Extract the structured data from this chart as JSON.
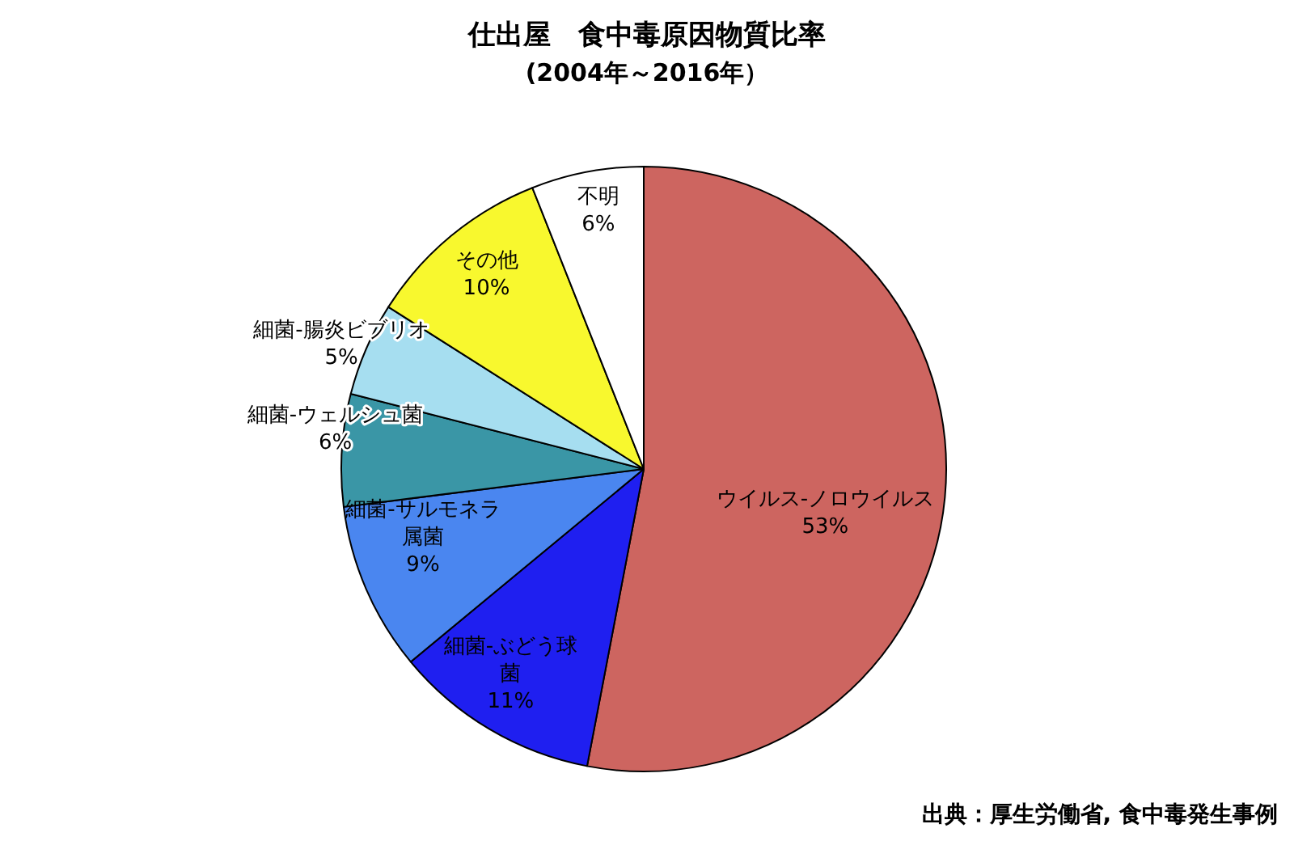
{
  "chart_data": {
    "type": "pie",
    "title": "仕出屋　食中毒原因物質比率",
    "subtitle": "(2004年～2016年）",
    "categories": [
      "ウイルス-ノロウイルス",
      "細菌-ぶどう球菌",
      "細菌-サルモネラ属菌",
      "細菌-ウェルシュ菌",
      "細菌-腸炎ビブリオ",
      "その他",
      "不明"
    ],
    "values": [
      53,
      11,
      9,
      6,
      5,
      10,
      6
    ],
    "value_labels": [
      "53%",
      "11%",
      "9%",
      "6%",
      "5%",
      "10%",
      "6%"
    ],
    "colors": [
      "#cd6560",
      "#1f1ff0",
      "#4a86f0",
      "#3a96a6",
      "#a6def0",
      "#f8f82e",
      "#ffffff"
    ],
    "annotations": [
      "出典：厚生労働省, 食中毒発生事例"
    ]
  }
}
